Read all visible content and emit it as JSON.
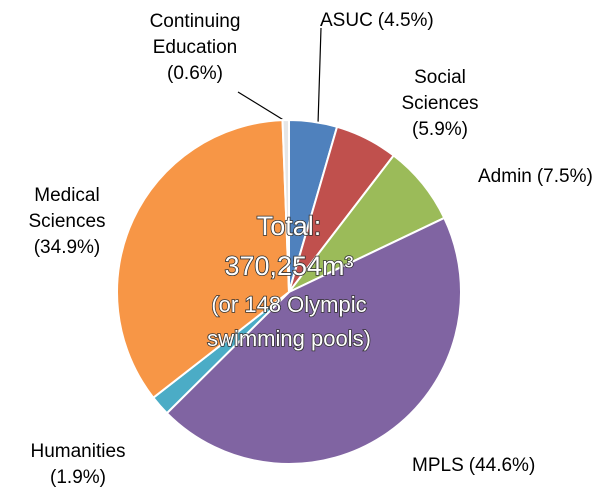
{
  "chart_data": {
    "type": "pie",
    "categories": [
      "ASUC",
      "Social Sciences",
      "Admin",
      "MPLS",
      "Humanities",
      "Medical Sciences",
      "Continuing Education"
    ],
    "values": [
      4.5,
      5.9,
      7.5,
      44.6,
      1.9,
      34.9,
      0.6
    ],
    "value_labels": [
      "(4.5%)",
      "(5.9%)",
      "(7.5%)",
      "(44.6%)",
      "(1.9%)",
      "(34.9%)",
      "(0.6%)"
    ],
    "colors": [
      "#4f81bd",
      "#c0504d",
      "#9bbb59",
      "#8064a2",
      "#4bacc6",
      "#f79646",
      "#e6e6e6"
    ],
    "annotations": [
      "Total:",
      "370,254m³",
      "(or 148 Olympic",
      "swimming pools)"
    ]
  }
}
